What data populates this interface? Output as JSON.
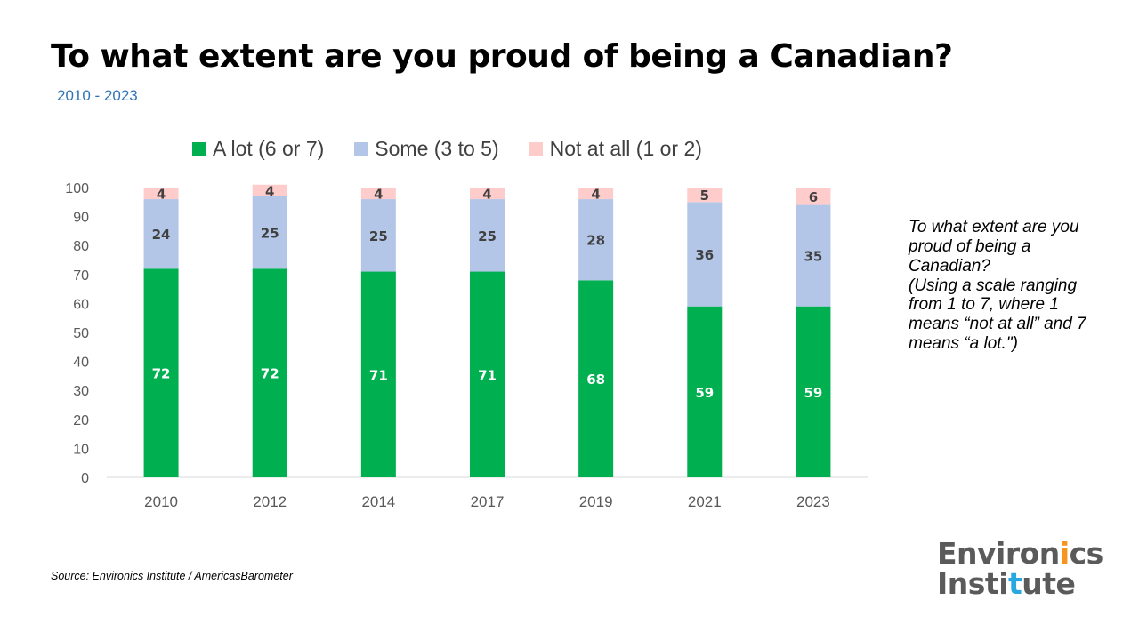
{
  "title": "To what extent are you proud of being a Canadian?",
  "subtitle": "2010 - 2023",
  "legend": [
    {
      "label": "A lot (6 or 7)",
      "color": "#00b050"
    },
    {
      "label": "Some (3 to 5)",
      "color": "#b4c6e7"
    },
    {
      "label": "Not at all (1 or 2)",
      "color": "#ffcccc"
    }
  ],
  "chart_data": {
    "type": "bar",
    "stacked": true,
    "categories": [
      "2010",
      "2012",
      "2014",
      "2017",
      "2019",
      "2021",
      "2023"
    ],
    "series": [
      {
        "name": "A lot (6 or 7)",
        "color": "#00b050",
        "label_color": "#ffffff",
        "values": [
          72,
          72,
          71,
          71,
          68,
          59,
          59
        ]
      },
      {
        "name": "Some (3 to 5)",
        "color": "#b4c6e7",
        "label_color": "#404040",
        "values": [
          24,
          25,
          25,
          25,
          28,
          36,
          35
        ]
      },
      {
        "name": "Not at all (1 or 2)",
        "color": "#ffcccc",
        "label_color": "#404040",
        "values": [
          4,
          4,
          4,
          4,
          4,
          5,
          6
        ]
      }
    ],
    "y_ticks": [
      "0",
      "10",
      "20",
      "30",
      "40",
      "50",
      "60",
      "70",
      "80",
      "90",
      "100"
    ],
    "ylim": [
      0,
      100
    ],
    "grid": false,
    "legend_position": "top"
  },
  "side_note": {
    "question": "To what extent are you proud of being a Canadian?",
    "scale_note": "(Using a scale ranging from 1 to 7, where 1 means “not at all” and 7 means “a lot.\")"
  },
  "source": "Source: Environics Institute / AmericasBarometer",
  "logo": {
    "line1_a": "Environ",
    "line1_b": "i",
    "line1_c": "cs",
    "line2_a": "Insti",
    "line2_b": "t",
    "line2_c": "ute"
  }
}
